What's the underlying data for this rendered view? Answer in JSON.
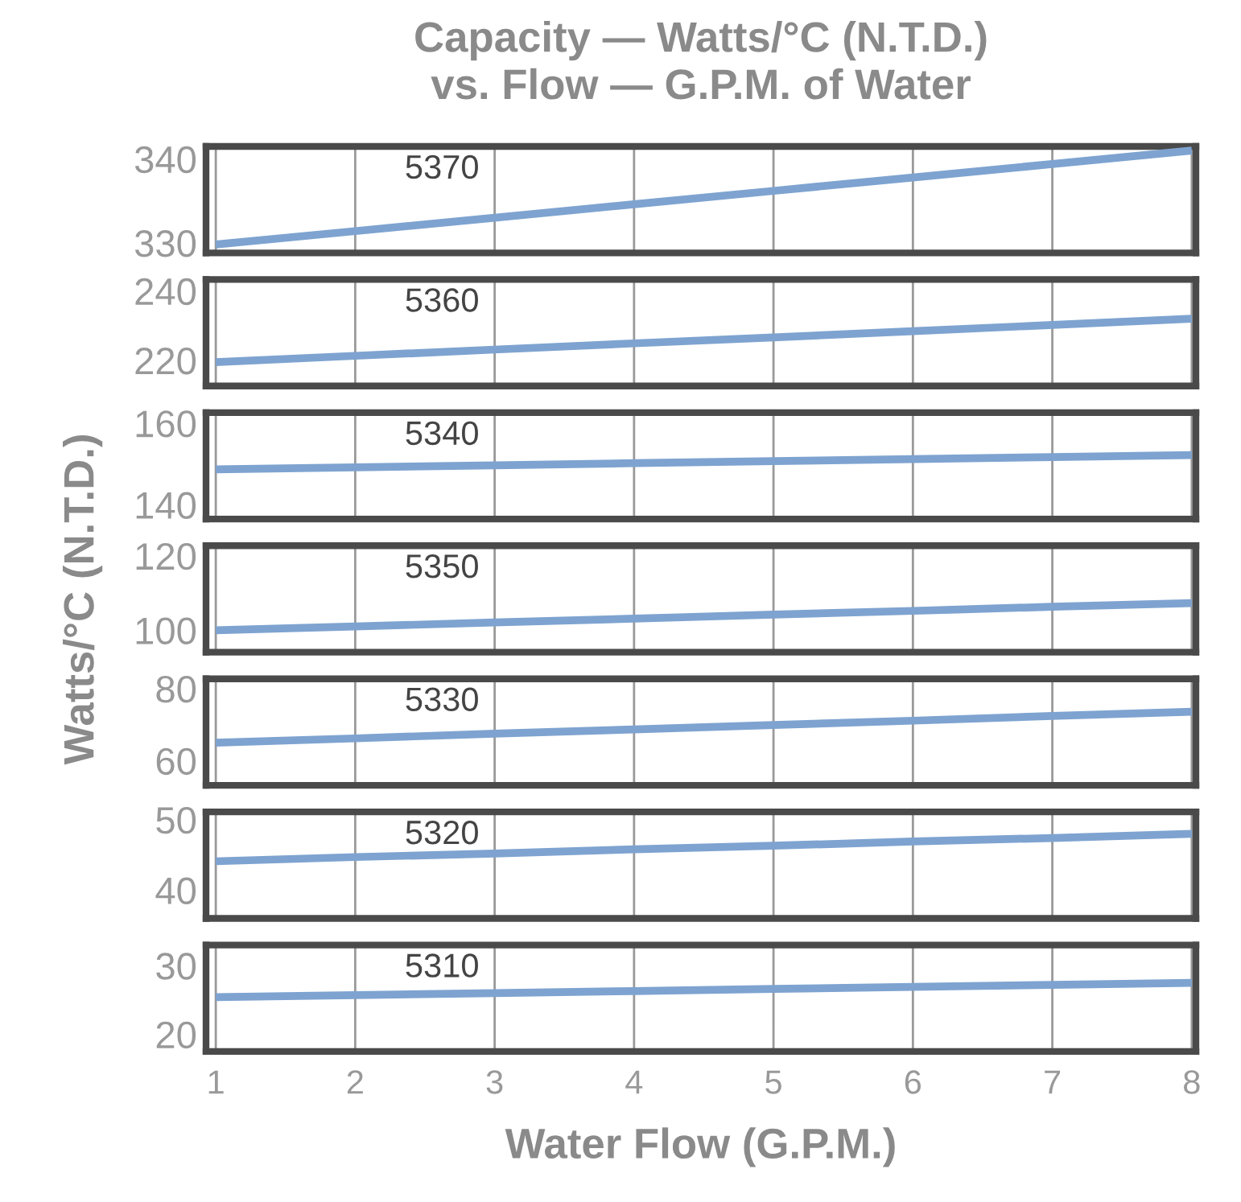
{
  "chart_data": [
    {
      "type": "line",
      "title": "Capacity — Watts/°C (N.T.D.)\nvs. Flow — G.P.M. of Water",
      "series": [
        {
          "name": "5370",
          "color": "#7ea3d0",
          "x": [
            1,
            2,
            3,
            4,
            5,
            6,
            7,
            8
          ],
          "values": [
            329.8,
            331.4,
            333.0,
            334.6,
            336.2,
            337.8,
            339.4,
            341.0
          ]
        }
      ],
      "xlim": [
        0.93,
        8.03
      ],
      "ylim": [
        328.8,
        341.5
      ],
      "xticks": [
        1,
        2,
        3,
        4,
        5,
        6,
        7,
        8
      ],
      "yticks": [
        330,
        340
      ],
      "grid": "x",
      "tick_labels": "y"
    },
    {
      "type": "line",
      "series": [
        {
          "name": "5360",
          "color": "#7ea3d0",
          "x": [
            1,
            2,
            3,
            4,
            5,
            6,
            7,
            8
          ],
          "values": [
            219.5,
            221.3,
            223.1,
            224.9,
            226.6,
            228.4,
            230.2,
            232.0
          ]
        }
      ],
      "xlim": [
        0.93,
        8.03
      ],
      "ylim": [
        212.6,
        243.3
      ],
      "xticks": [
        1,
        2,
        3,
        4,
        5,
        6,
        7,
        8
      ],
      "yticks": [
        220,
        240
      ],
      "grid": "x",
      "tick_labels": "y"
    },
    {
      "type": "line",
      "series": [
        {
          "name": "5340",
          "color": "#7ea3d0",
          "x": [
            1,
            2,
            3,
            4,
            5,
            6,
            7,
            8
          ],
          "values": [
            148.7,
            149.2,
            149.7,
            150.2,
            150.7,
            151.2,
            151.7,
            152.2
          ]
        }
      ],
      "xlim": [
        0.93,
        8.03
      ],
      "ylim": [
        136.5,
        162.6
      ],
      "xticks": [
        1,
        2,
        3,
        4,
        5,
        6,
        7,
        8
      ],
      "yticks": [
        140,
        160
      ],
      "grid": "x",
      "tick_labels": "y"
    },
    {
      "type": "line",
      "ylabel": "Watts/°C (N.T.D.)",
      "series": [
        {
          "name": "5350",
          "color": "#7ea3d0",
          "x": [
            1,
            2,
            3,
            4,
            5,
            6,
            7,
            8
          ],
          "values": [
            100,
            101.0,
            102.1,
            103.1,
            104.2,
            105.2,
            106.3,
            107.3
          ]
        }
      ],
      "xlim": [
        0.93,
        8.03
      ],
      "ylim": [
        94.1,
        122.7
      ],
      "xticks": [
        1,
        2,
        3,
        4,
        5,
        6,
        7,
        8
      ],
      "yticks": [
        100,
        120
      ],
      "grid": "x",
      "tick_labels": "y"
    },
    {
      "type": "line",
      "series": [
        {
          "name": "5330",
          "color": "#7ea3d0",
          "x": [
            1,
            2,
            3,
            4,
            5,
            6,
            7,
            8
          ],
          "values": [
            65,
            66.2,
            67.5,
            68.7,
            69.9,
            71.1,
            72.4,
            73.6
          ]
        }
      ],
      "xlim": [
        0.93,
        8.03
      ],
      "ylim": [
        53.2,
        82.7
      ],
      "xticks": [
        1,
        2,
        3,
        4,
        5,
        6,
        7,
        8
      ],
      "yticks": [
        60,
        80
      ],
      "grid": "x",
      "tick_labels": "y"
    },
    {
      "type": "line",
      "series": [
        {
          "name": "5320",
          "color": "#7ea3d0",
          "x": [
            1,
            2,
            3,
            4,
            5,
            6,
            7,
            8
          ],
          "values": [
            44.1,
            44.7,
            45.2,
            45.8,
            46.3,
            46.9,
            47.4,
            48.0
          ]
        }
      ],
      "xlim": [
        0.93,
        8.03
      ],
      "ylim": [
        36,
        51.1
      ],
      "xticks": [
        1,
        2,
        3,
        4,
        5,
        6,
        7,
        8
      ],
      "yticks": [
        40,
        50
      ],
      "grid": "x",
      "tick_labels": "y"
    },
    {
      "type": "line",
      "xlabel": "Water Flow (G.P.M.)",
      "series": [
        {
          "name": "5310",
          "color": "#7ea3d0",
          "x": [
            1,
            2,
            3,
            4,
            5,
            6,
            7,
            8
          ],
          "values": [
            25.4,
            25.7,
            26.0,
            26.3,
            26.6,
            26.9,
            27.2,
            27.5
          ]
        }
      ],
      "xlim": [
        0.93,
        8.03
      ],
      "ylim": [
        17.5,
        33.0
      ],
      "xticks": [
        1,
        2,
        3,
        4,
        5,
        6,
        7,
        8
      ],
      "yticks": [
        20,
        30
      ],
      "grid": "x"
    }
  ]
}
